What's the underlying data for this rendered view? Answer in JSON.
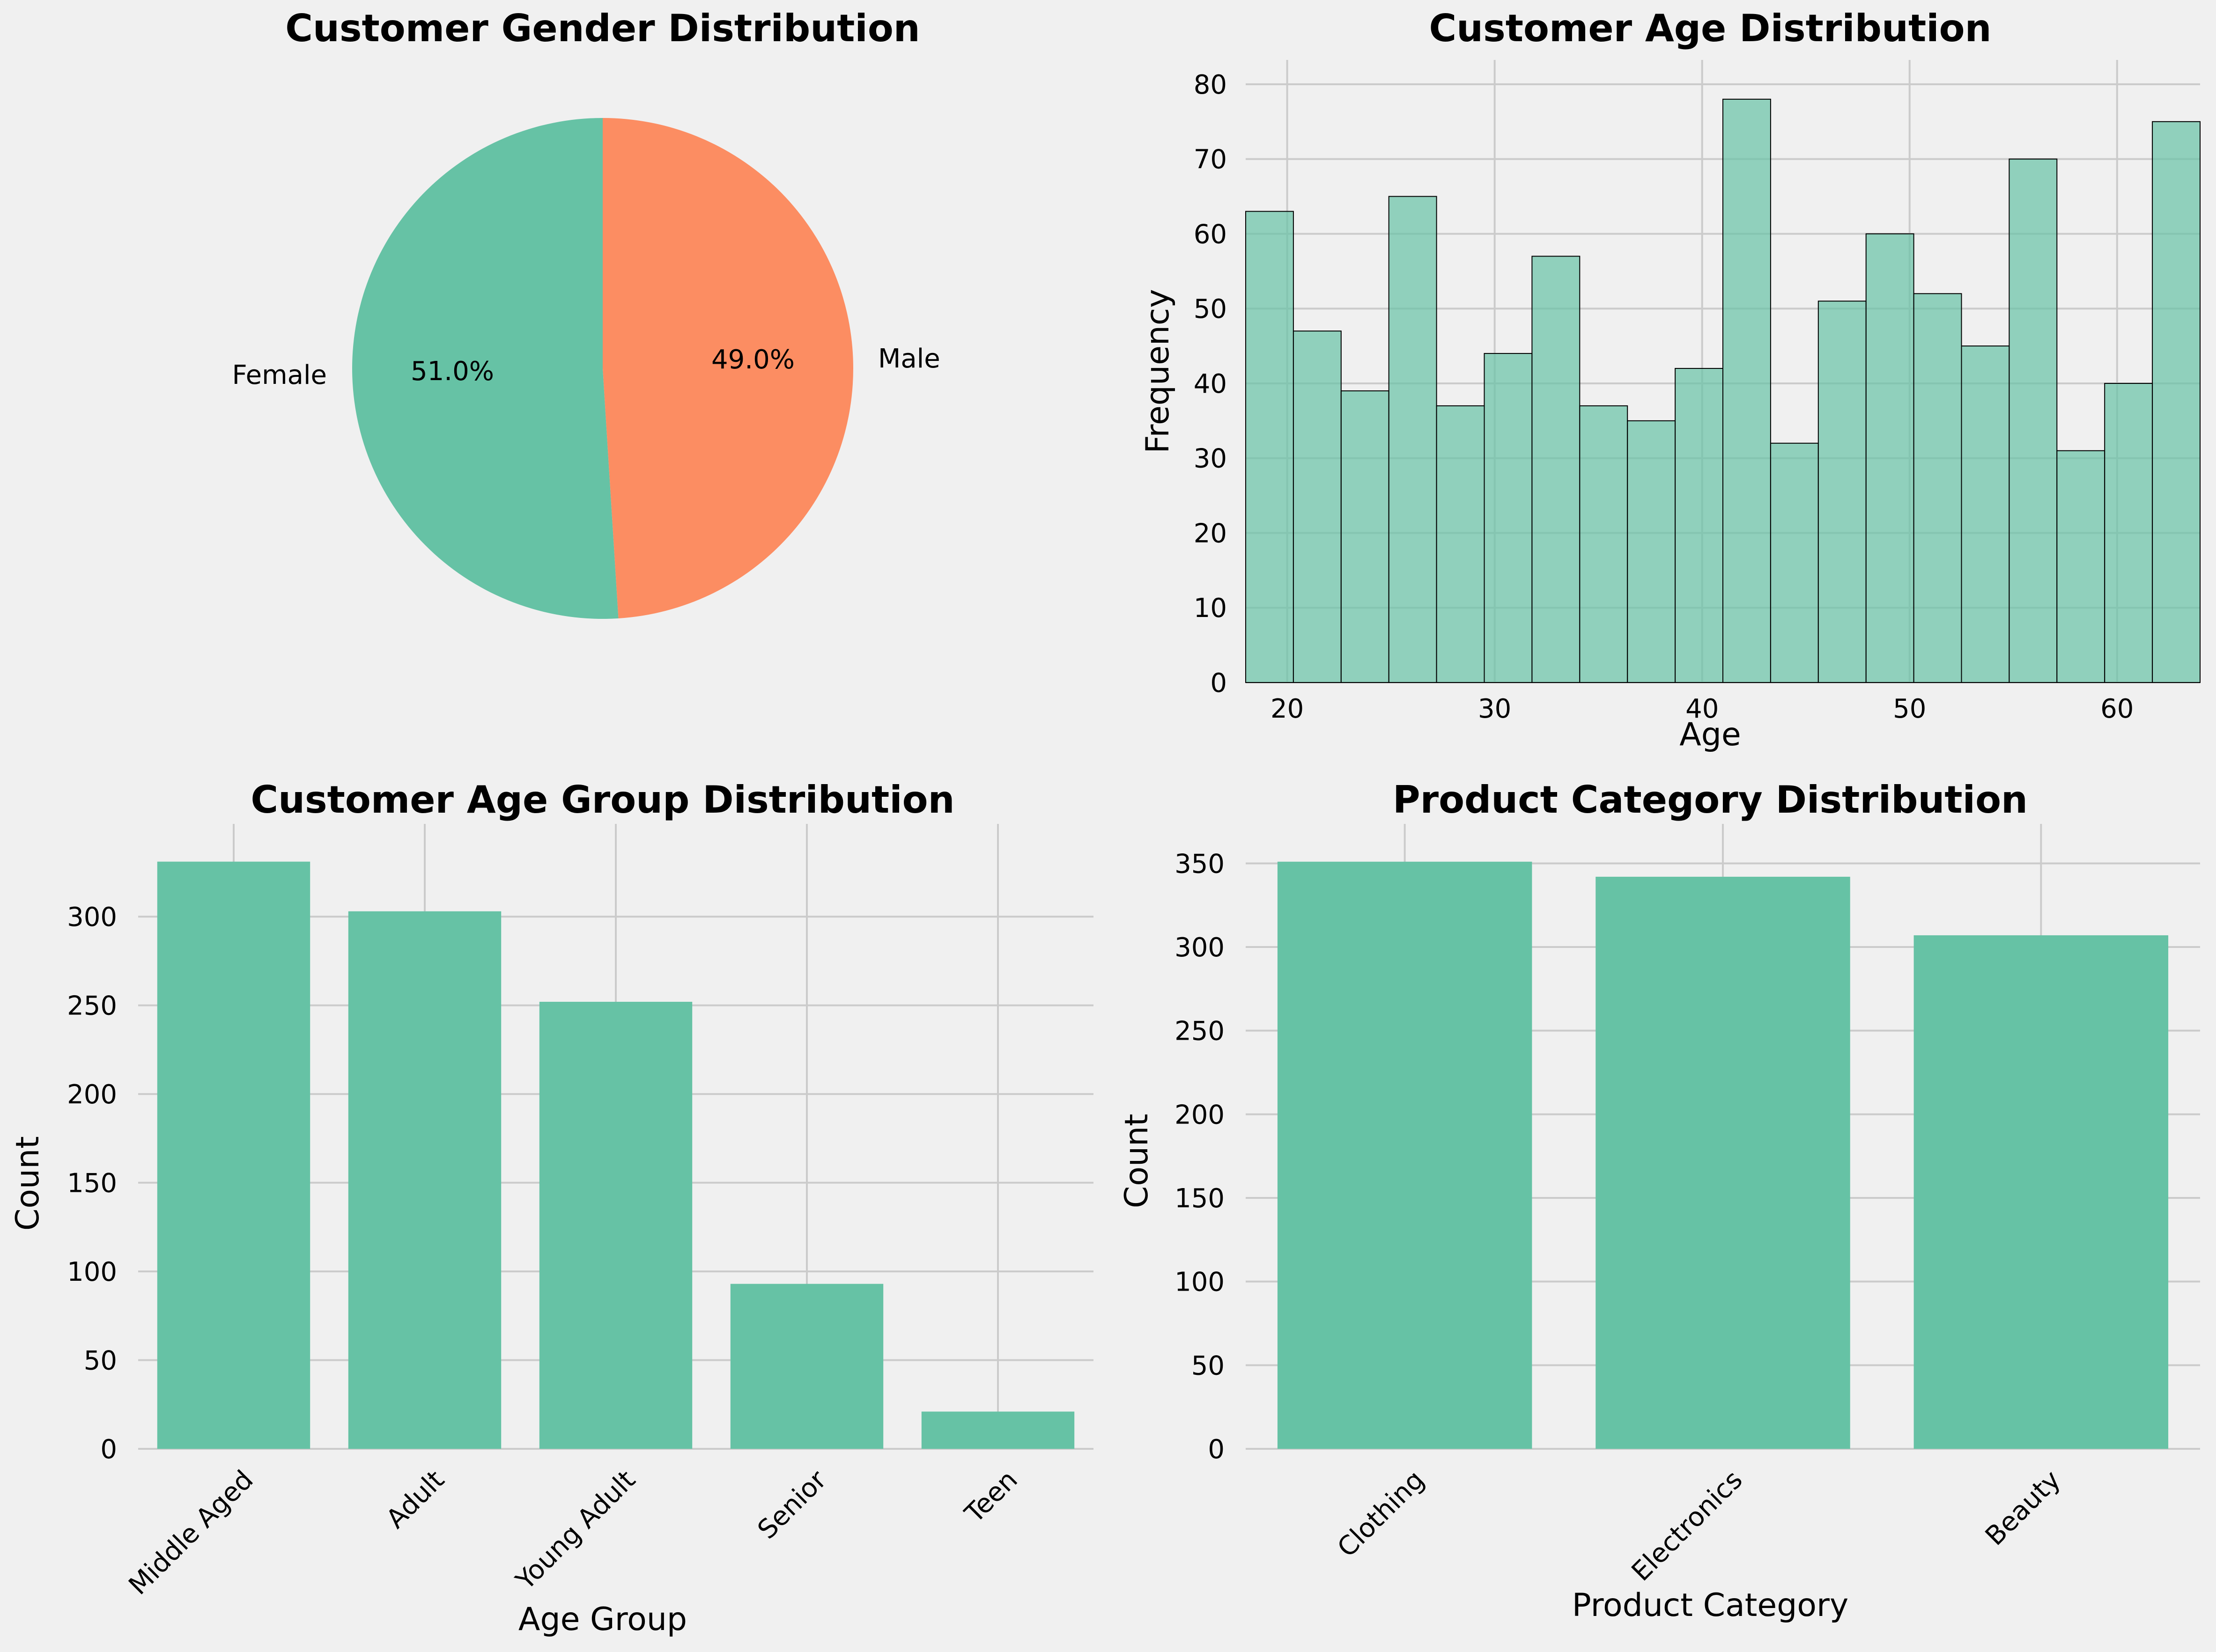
{
  "colors": {
    "background": "#f0f0f0",
    "bar": "#66c2a5",
    "hist": "#66c2a5",
    "female": "#66c2a5",
    "male": "#fc8d62",
    "grid": "#cbcbcb",
    "edge": "#000000"
  },
  "chart_data": [
    {
      "type": "pie",
      "title": "Customer Gender Distribution",
      "labels": [
        "Female",
        "Male"
      ],
      "values": [
        51.0,
        49.0
      ],
      "autopct": [
        "51.0%",
        "49.0%"
      ]
    },
    {
      "type": "bar",
      "subtype": "histogram",
      "title": "Customer Age Distribution",
      "xlabel": "Age",
      "ylabel": "Frequency",
      "bin_start": 18,
      "bin_end": 64,
      "values": [
        63,
        47,
        39,
        65,
        37,
        44,
        57,
        37,
        35,
        42,
        78,
        32,
        51,
        60,
        52,
        45,
        70,
        31,
        40,
        75
      ],
      "xticks": [
        20,
        30,
        40,
        50,
        60
      ],
      "yticks": [
        0,
        10,
        20,
        30,
        40,
        50,
        60,
        70,
        80
      ],
      "ylim": [
        0,
        82
      ]
    },
    {
      "type": "bar",
      "title": "Customer Age Group Distribution",
      "xlabel": "Age Group",
      "ylabel": "Count",
      "categories": [
        "Middle Aged",
        "Adult",
        "Young Adult",
        "Senior",
        "Teen"
      ],
      "values": [
        331,
        303,
        252,
        93,
        21
      ],
      "yticks": [
        0,
        50,
        100,
        150,
        200,
        250,
        300
      ],
      "ylim": [
        0,
        347
      ]
    },
    {
      "type": "bar",
      "title": "Product Category Distribution",
      "xlabel": "Product Category",
      "ylabel": "Count",
      "categories": [
        "Clothing",
        "Electronics",
        "Beauty"
      ],
      "values": [
        351,
        342,
        307
      ],
      "yticks": [
        0,
        50,
        100,
        150,
        200,
        250,
        300,
        350
      ],
      "ylim": [
        0,
        368
      ]
    }
  ]
}
